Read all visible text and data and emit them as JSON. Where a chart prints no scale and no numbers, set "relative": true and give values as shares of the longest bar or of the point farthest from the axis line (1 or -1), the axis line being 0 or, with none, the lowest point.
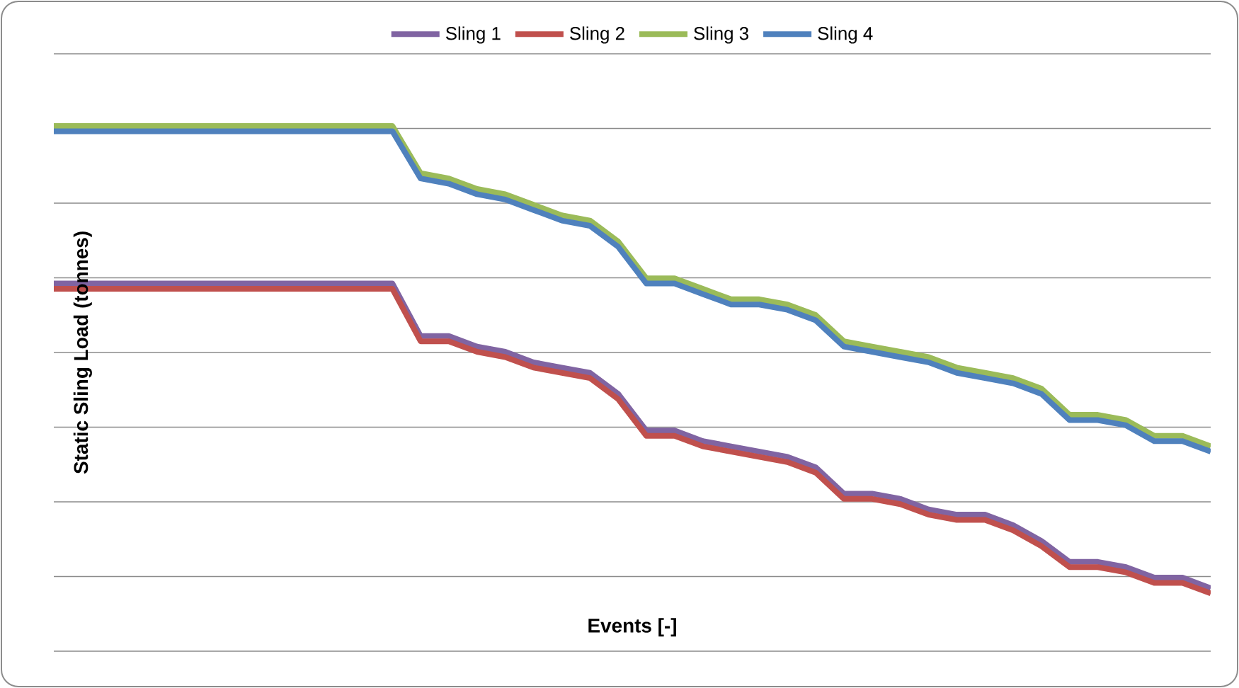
{
  "chart_data": {
    "type": "line",
    "xlabel": "Events [-]",
    "ylabel": "Static Sling Load (tonnes)",
    "relative": true,
    "grid": "y",
    "legend": "top",
    "marker": "none",
    "line_style": "solid",
    "categories": [
      null,
      null,
      null,
      null,
      null,
      null,
      null,
      null,
      null,
      null,
      null,
      null,
      null,
      null,
      null,
      null,
      null,
      null,
      null,
      null,
      null,
      null,
      null,
      null,
      null,
      null,
      null,
      null,
      null,
      null,
      null,
      null,
      null,
      null,
      null,
      null,
      null,
      null,
      null,
      null,
      null,
      null
    ],
    "series": [
      {
        "name": "Sling 1",
        "color": "#8064a2",
        "values": [
          0.7,
          0.7,
          0.7,
          0.7,
          0.7,
          0.7,
          0.7,
          0.7,
          0.7,
          0.7,
          0.7,
          0.7,
          0.7,
          0.6,
          0.6,
          0.58,
          0.57,
          0.55,
          0.54,
          0.53,
          0.49,
          0.42,
          0.42,
          0.4,
          0.39,
          0.38,
          0.37,
          0.35,
          0.3,
          0.3,
          0.29,
          0.27,
          0.26,
          0.26,
          0.24,
          0.21,
          0.17,
          0.17,
          0.16,
          0.14,
          0.14,
          0.12
        ]
      },
      {
        "name": "Sling 2",
        "color": "#c0504d",
        "values": [
          0.69,
          0.69,
          0.69,
          0.69,
          0.69,
          0.69,
          0.69,
          0.69,
          0.69,
          0.69,
          0.69,
          0.69,
          0.69,
          0.59,
          0.59,
          0.57,
          0.56,
          0.54,
          0.53,
          0.52,
          0.48,
          0.41,
          0.41,
          0.39,
          0.38,
          0.37,
          0.36,
          0.34,
          0.29,
          0.29,
          0.28,
          0.26,
          0.25,
          0.25,
          0.23,
          0.2,
          0.16,
          0.16,
          0.15,
          0.13,
          0.13,
          0.11
        ]
      },
      {
        "name": "Sling 3",
        "color": "#9bbb59",
        "values": [
          1.0,
          1.0,
          1.0,
          1.0,
          1.0,
          1.0,
          1.0,
          1.0,
          1.0,
          1.0,
          1.0,
          1.0,
          1.0,
          0.91,
          0.9,
          0.88,
          0.87,
          0.85,
          0.83,
          0.82,
          0.78,
          0.71,
          0.71,
          0.69,
          0.67,
          0.67,
          0.66,
          0.64,
          0.59,
          0.58,
          0.57,
          0.56,
          0.54,
          0.53,
          0.52,
          0.5,
          0.45,
          0.45,
          0.44,
          0.41,
          0.41,
          0.39
        ]
      },
      {
        "name": "Sling 4",
        "color": "#4f81bd",
        "values": [
          0.99,
          0.99,
          0.99,
          0.99,
          0.99,
          0.99,
          0.99,
          0.99,
          0.99,
          0.99,
          0.99,
          0.99,
          0.99,
          0.9,
          0.89,
          0.87,
          0.86,
          0.84,
          0.82,
          0.81,
          0.77,
          0.7,
          0.7,
          0.68,
          0.66,
          0.66,
          0.65,
          0.63,
          0.58,
          0.57,
          0.56,
          0.55,
          0.53,
          0.52,
          0.51,
          0.49,
          0.44,
          0.44,
          0.43,
          0.4,
          0.4,
          0.38
        ]
      }
    ]
  }
}
